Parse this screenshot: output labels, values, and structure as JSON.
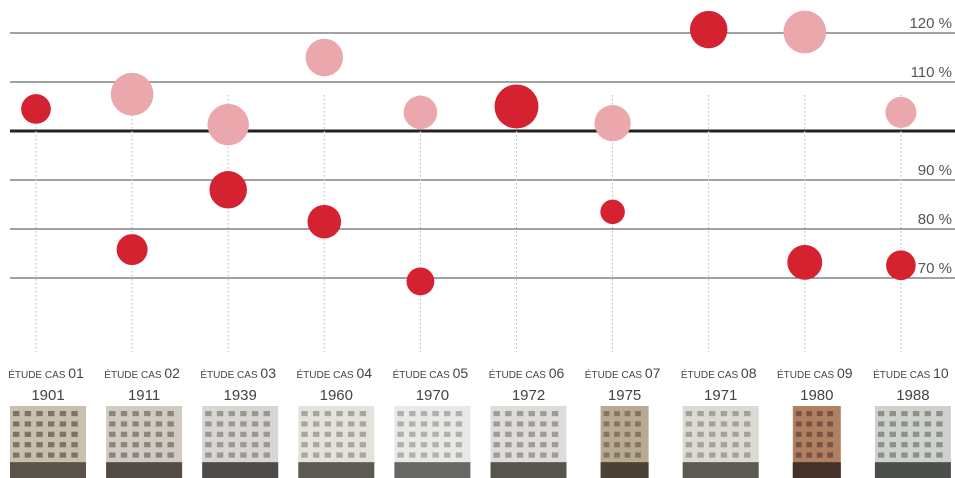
{
  "chart_data": {
    "type": "scatter",
    "y_ticks": [
      {
        "value": 70,
        "label": "70 %"
      },
      {
        "value": 80,
        "label": "80 %"
      },
      {
        "value": 90,
        "label": "90 %"
      },
      {
        "value": 100,
        "label": ""
      },
      {
        "value": 110,
        "label": "110 %"
      },
      {
        "value": 120,
        "label": "120 %"
      }
    ],
    "ylim": [
      60,
      120
    ],
    "baseline": 100,
    "grid": true,
    "colors": {
      "series_1": "#d42230",
      "series_2": "#eaa8ac",
      "axis": "#222222",
      "grid": "#444444",
      "stem": "#bbbbbb"
    },
    "cases": [
      {
        "prefix": "ÉTUDE CAS",
        "number": "01",
        "year": "1901"
      },
      {
        "prefix": "ÉTUDE CAS",
        "number": "02",
        "year": "1911"
      },
      {
        "prefix": "ÉTUDE CAS",
        "number": "03",
        "year": "1939"
      },
      {
        "prefix": "ÉTUDE CAS",
        "number": "04",
        "year": "1960"
      },
      {
        "prefix": "ÉTUDE CAS",
        "number": "05",
        "year": "1970"
      },
      {
        "prefix": "ÉTUDE CAS",
        "number": "06",
        "year": "1972"
      },
      {
        "prefix": "ÉTUDE CAS",
        "number": "07",
        "year": "1975"
      },
      {
        "prefix": "ÉTUDE CAS",
        "number": "08",
        "year": "1971"
      },
      {
        "prefix": "ÉTUDE CAS",
        "number": "09",
        "year": "1980"
      },
      {
        "prefix": "ÉTUDE CAS",
        "number": "10",
        "year": "1988"
      }
    ],
    "series": [
      {
        "color": "#d42230",
        "points": [
          {
            "case": 1,
            "y": 104.5,
            "size": 0.45
          },
          {
            "case": 2,
            "y": 75.8,
            "size": 0.5
          },
          {
            "case": 3,
            "y": 88.0,
            "size": 0.75
          },
          {
            "case": 4,
            "y": 81.5,
            "size": 0.6
          },
          {
            "case": 5,
            "y": 69.3,
            "size": 0.38
          },
          {
            "case": 6,
            "y": 105.0,
            "size": 1.0
          },
          {
            "case": 7,
            "y": 83.5,
            "size": 0.25
          },
          {
            "case": 8,
            "y": 120.7,
            "size": 0.75
          },
          {
            "case": 9,
            "y": 73.2,
            "size": 0.65
          },
          {
            "case": 10,
            "y": 72.6,
            "size": 0.45
          }
        ]
      },
      {
        "color": "#eaa8ac",
        "points": [
          {
            "case": 2,
            "y": 107.5,
            "size": 0.95
          },
          {
            "case": 3,
            "y": 101.3,
            "size": 0.9
          },
          {
            "case": 4,
            "y": 115.0,
            "size": 0.75
          },
          {
            "case": 5,
            "y": 103.8,
            "size": 0.6
          },
          {
            "case": 7,
            "y": 101.6,
            "size": 0.7
          },
          {
            "case": 9,
            "y": 120.2,
            "size": 0.95
          },
          {
            "case": 10,
            "y": 103.8,
            "size": 0.5
          }
        ]
      }
    ]
  },
  "thumbnails": [
    {
      "icon": "building-photo-01",
      "colors": [
        "#c9bfae",
        "#7e7466",
        "#5a534a"
      ]
    },
    {
      "icon": "building-photo-02",
      "colors": [
        "#cfcac2",
        "#8a857d",
        "#514c47"
      ]
    },
    {
      "icon": "building-photo-03",
      "colors": [
        "#d8d6d2",
        "#9a9893",
        "#4e4c49"
      ]
    },
    {
      "icon": "building-photo-04",
      "colors": [
        "#e4e2dc",
        "#a8a6a1",
        "#5d5a56"
      ]
    },
    {
      "icon": "building-photo-05",
      "colors": [
        "#e8e8e6",
        "#b0b0ae",
        "#676765"
      ]
    },
    {
      "icon": "building-photo-06",
      "colors": [
        "#dedcd8",
        "#9e9c98",
        "#56544f"
      ]
    },
    {
      "icon": "building-photo-07",
      "colors": [
        "#b8aa92",
        "#857660",
        "#4a4236"
      ]
    },
    {
      "icon": "building-photo-08",
      "colors": [
        "#dcdad4",
        "#a4a29c",
        "#5c5a55"
      ]
    },
    {
      "icon": "building-photo-09",
      "colors": [
        "#b08062",
        "#7a5440",
        "#43322a"
      ]
    },
    {
      "icon": "building-photo-10",
      "colors": [
        "#cfd2cc",
        "#8e918a",
        "#4d504a"
      ]
    }
  ]
}
